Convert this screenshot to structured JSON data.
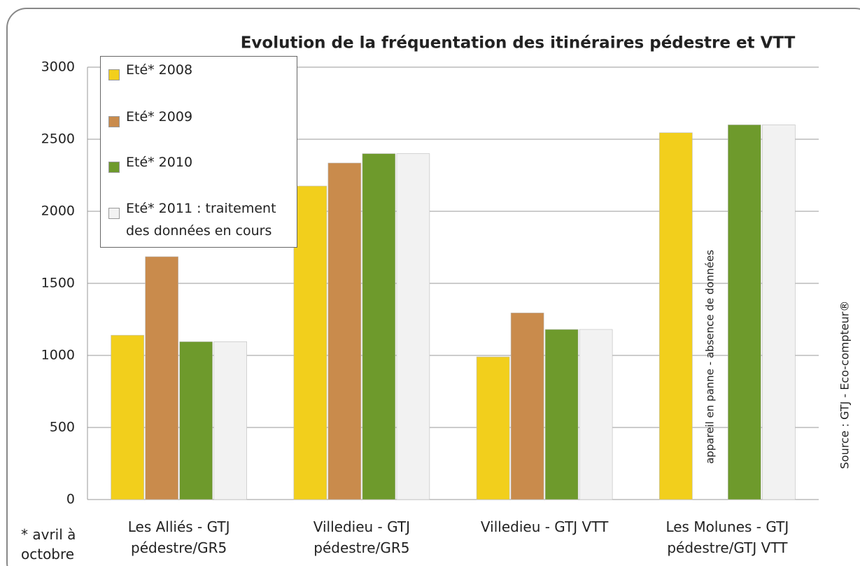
{
  "chart_data": {
    "type": "bar",
    "title": "Evolution de la fréquentation des itinéraires pédestre et VTT",
    "categories": [
      "Les Alliés - GTJ pédestre/GR5",
      "Villedieu - GTJ pédestre/GR5",
      "Villedieu - GTJ VTT",
      "Les Molunes - GTJ pédestre/GTJ VTT"
    ],
    "series": [
      {
        "name": "Eté* 2008",
        "color": "#f2cf1c",
        "values": [
          1140,
          2175,
          990,
          2545
        ]
      },
      {
        "name": "Eté* 2009",
        "color": "#c98b4c",
        "values": [
          1685,
          2335,
          1295,
          null
        ]
      },
      {
        "name": "Eté* 2010",
        "color": "#6e9a2c",
        "values": [
          1095,
          2400,
          1180,
          2600
        ]
      },
      {
        "name": "Eté* 2011 : traitement des données en cours",
        "color": "#f2f2f2",
        "values": [
          1095,
          2400,
          1180,
          2600
        ]
      }
    ],
    "ylim": [
      0,
      3000
    ],
    "yticks": [
      0,
      500,
      1000,
      1500,
      2000,
      2500,
      3000
    ],
    "grid": true,
    "legend": "upper left",
    "annotations": [
      "appareil en panne - absence de données"
    ],
    "source": "Source : GTJ - Eco-compteur®",
    "footnote": "* avril à octobre"
  }
}
